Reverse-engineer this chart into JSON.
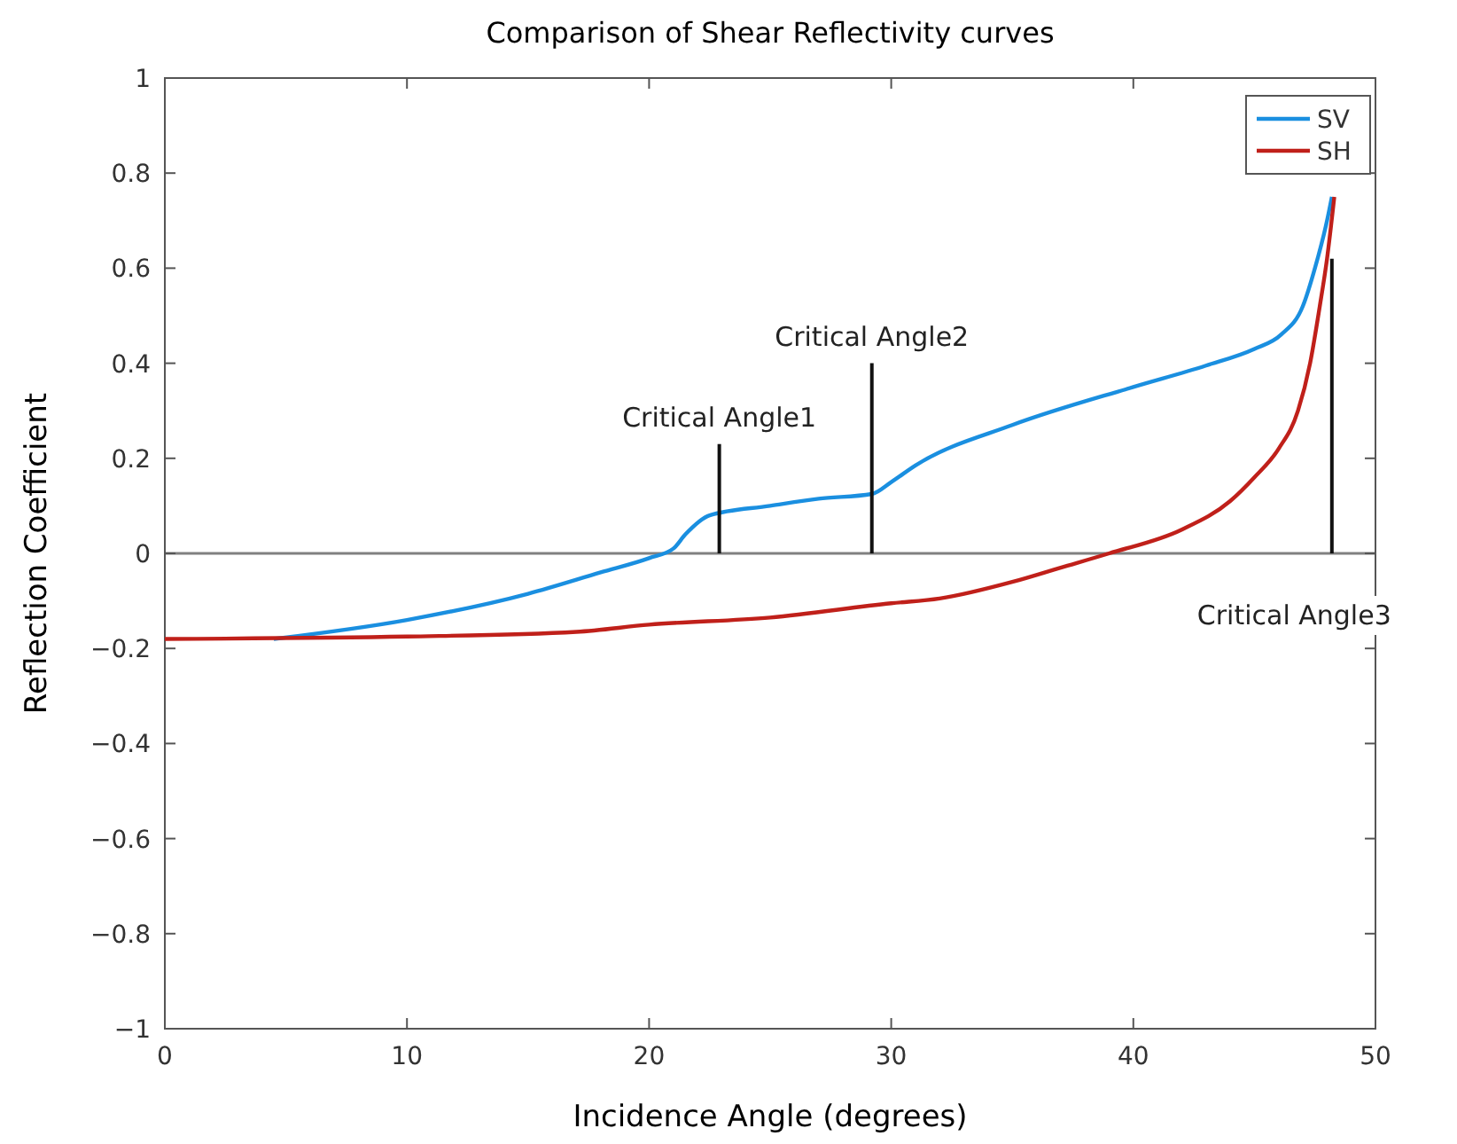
{
  "chart_data": {
    "type": "line",
    "title": "Comparison of Shear Reflectivity curves",
    "xlabel": "Incidence Angle (degrees)",
    "ylabel": "Reflection Coefficient",
    "xlim": [
      0,
      50
    ],
    "xticks": [
      0,
      10,
      20,
      30,
      40,
      50
    ],
    "ylim": [
      -1,
      1
    ],
    "yticks": [
      -1,
      -0.8,
      -0.6,
      -0.4,
      -0.2,
      0,
      0.2,
      0.4,
      0.6,
      0.8,
      1
    ],
    "legend": "top right",
    "grid": false,
    "series": [
      {
        "name": "SV",
        "color": "#1a8fe0",
        "x": [
          4.5,
          10,
          15,
          18,
          20,
          21,
          21.5,
          22.5,
          25,
          27,
          29.2,
          30,
          31,
          35,
          40,
          43,
          45,
          46.1,
          47,
          47.5,
          48,
          48.2
        ],
        "values": [
          -0.18,
          -0.14,
          -0.085,
          -0.04,
          -0.01,
          0.01,
          0.04,
          0.08,
          0.1,
          0.115,
          0.125,
          0.15,
          0.185,
          0.27,
          0.35,
          0.395,
          0.43,
          0.46,
          0.52,
          0.6,
          0.7,
          0.75
        ]
      },
      {
        "name": "SH",
        "color": "#c0201a",
        "x": [
          0,
          10,
          17,
          20,
          25,
          30,
          32,
          35,
          37,
          39,
          42,
          44,
          45,
          46,
          46.8,
          47.3,
          47.7,
          48,
          48.3
        ],
        "values": [
          -0.18,
          -0.175,
          -0.165,
          -0.15,
          -0.135,
          -0.105,
          -0.095,
          -0.06,
          -0.03,
          0,
          0.05,
          0.11,
          0.16,
          0.22,
          0.3,
          0.4,
          0.52,
          0.62,
          0.75
        ]
      },
      {
        "color": "#111111",
        "x": [
          22.9,
          22.9
        ],
        "values": [
          0,
          0.23
        ]
      },
      {
        "color": "#111111",
        "x": [
          29.2,
          29.2
        ],
        "values": [
          0,
          0.4
        ]
      },
      {
        "color": "#111111",
        "x": [
          48.2,
          48.2
        ],
        "values": [
          0,
          0.62
        ]
      }
    ],
    "ref_lines": [
      {
        "axis": "y",
        "value": 0,
        "color": "#808080"
      }
    ],
    "annotations": [
      "Critical Angle1",
      "Critical Angle2",
      "Critical Angle3"
    ]
  }
}
